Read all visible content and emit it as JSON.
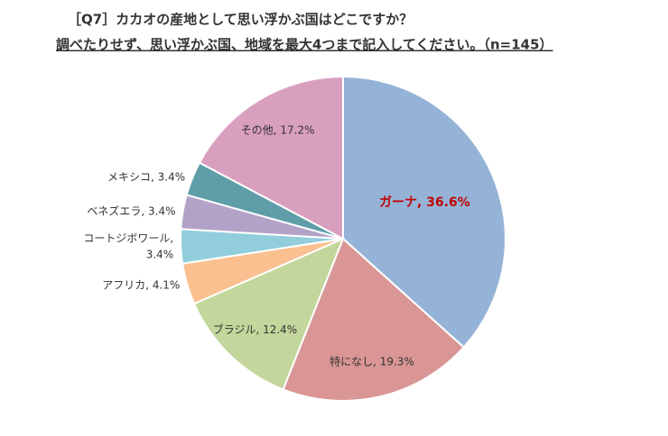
{
  "chart_data": {
    "type": "pie",
    "title": "［Q7］カカオの産地として思い浮かぶ国はどこですか？",
    "subtitle": "調べたりせず、思い浮かぶ国、地域を最大4つまで記入してください。（n=145）",
    "values": [
      36.6,
      19.3,
      12.4,
      4.1,
      3.4,
      3.4,
      3.4,
      17.2
    ],
    "labels": [
      [
        "ガーナ, 36.6%"
      ],
      [
        "特になし, 19.3%"
      ],
      [
        "ブラジル, 12.4%"
      ],
      [
        "アフリカ, 4.1%"
      ],
      [
        "コートジボワール,",
        "3.4%"
      ],
      [
        "ベネズエラ, 3.4%"
      ],
      [
        "メキシコ, 3.4%"
      ],
      [
        "その他, 17.2%"
      ]
    ],
    "colors": [
      "#95b3d7",
      "#d99694",
      "#c3d69b",
      "#fac090",
      "#92cddc",
      "#b3a2c7",
      "#5f9ea8",
      "#d99fbf"
    ],
    "highlight_color": "#c00000"
  }
}
